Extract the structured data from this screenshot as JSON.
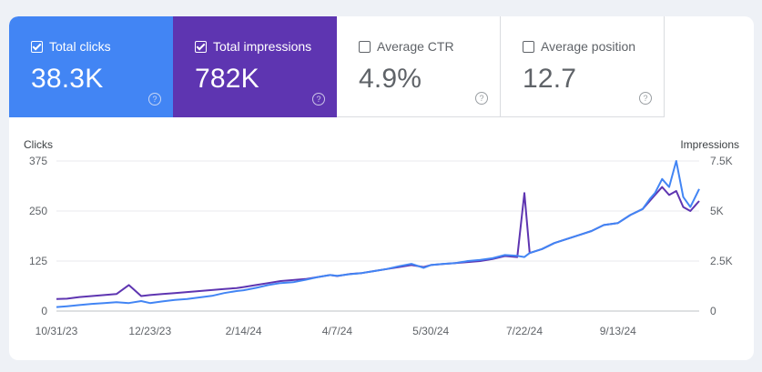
{
  "metrics": [
    {
      "label": "Total clicks",
      "value": "38.3K",
      "checked": true,
      "color": "#4285f4"
    },
    {
      "label": "Total impressions",
      "value": "782K",
      "checked": true,
      "color": "#5e35b1"
    },
    {
      "label": "Average CTR",
      "value": "4.9%",
      "checked": false,
      "color": "#ffffff"
    },
    {
      "label": "Average position",
      "value": "12.7",
      "checked": false,
      "color": "#ffffff"
    }
  ],
  "chart_data": {
    "type": "line",
    "left_axis": {
      "title": "Clicks",
      "ticks": [
        0,
        125,
        250,
        375
      ],
      "tick_labels": [
        "0",
        "125",
        "250",
        "375"
      ],
      "range": [
        0,
        375
      ]
    },
    "right_axis": {
      "title": "Impressions",
      "ticks": [
        0,
        2500,
        5000,
        7500
      ],
      "tick_labels": [
        "0",
        "2.5K",
        "5K",
        "7.5K"
      ],
      "range": [
        0,
        7500
      ]
    },
    "x_axis": {
      "ticks": [
        "10/31/23",
        "12/23/23",
        "2/14/24",
        "4/7/24",
        "5/30/24",
        "7/22/24",
        "9/13/24"
      ],
      "range": [
        "2023-10-31",
        "2024-10-29"
      ]
    },
    "grid": true,
    "series": [
      {
        "name": "Total clicks",
        "axis": "left",
        "color": "#4285f4",
        "x": [
          "2023-10-31",
          "2023-11-06",
          "2023-11-13",
          "2023-11-20",
          "2023-11-27",
          "2023-12-04",
          "2023-12-11",
          "2023-12-18",
          "2023-12-23",
          "2023-12-30",
          "2024-01-06",
          "2024-01-13",
          "2024-01-20",
          "2024-01-27",
          "2024-02-03",
          "2024-02-10",
          "2024-02-14",
          "2024-02-21",
          "2024-02-28",
          "2024-03-06",
          "2024-03-13",
          "2024-03-20",
          "2024-03-27",
          "2024-04-03",
          "2024-04-07",
          "2024-04-14",
          "2024-04-21",
          "2024-04-28",
          "2024-05-05",
          "2024-05-12",
          "2024-05-19",
          "2024-05-26",
          "2024-05-30",
          "2024-06-06",
          "2024-06-13",
          "2024-06-20",
          "2024-06-27",
          "2024-07-04",
          "2024-07-11",
          "2024-07-18",
          "2024-07-22",
          "2024-07-25",
          "2024-08-01",
          "2024-08-08",
          "2024-08-15",
          "2024-08-22",
          "2024-08-29",
          "2024-09-05",
          "2024-09-13",
          "2024-09-20",
          "2024-09-27",
          "2024-10-01",
          "2024-10-04",
          "2024-10-08",
          "2024-10-12",
          "2024-10-16",
          "2024-10-20",
          "2024-10-24",
          "2024-10-29"
        ],
        "values": [
          10,
          12,
          15,
          18,
          20,
          22,
          20,
          25,
          20,
          24,
          28,
          30,
          34,
          38,
          45,
          50,
          52,
          58,
          65,
          70,
          72,
          78,
          85,
          90,
          88,
          92,
          95,
          100,
          105,
          112,
          118,
          108,
          115,
          118,
          120,
          125,
          128,
          132,
          140,
          138,
          135,
          145,
          155,
          170,
          180,
          190,
          200,
          215,
          220,
          240,
          255,
          280,
          295,
          330,
          310,
          375,
          285,
          260,
          305
        ]
      },
      {
        "name": "Total impressions",
        "axis": "right",
        "color": "#5e35b1",
        "x": [
          "2023-10-31",
          "2023-11-06",
          "2023-11-13",
          "2023-11-20",
          "2023-11-27",
          "2023-12-04",
          "2023-12-11",
          "2023-12-18",
          "2023-12-23",
          "2023-12-30",
          "2024-01-06",
          "2024-01-13",
          "2024-01-20",
          "2024-01-27",
          "2024-02-03",
          "2024-02-10",
          "2024-02-14",
          "2024-02-21",
          "2024-02-28",
          "2024-03-06",
          "2024-03-13",
          "2024-03-20",
          "2024-03-27",
          "2024-04-03",
          "2024-04-07",
          "2024-04-14",
          "2024-04-21",
          "2024-04-28",
          "2024-05-05",
          "2024-05-12",
          "2024-05-19",
          "2024-05-26",
          "2024-05-30",
          "2024-06-06",
          "2024-06-13",
          "2024-06-20",
          "2024-06-27",
          "2024-07-04",
          "2024-07-11",
          "2024-07-18",
          "2024-07-22",
          "2024-07-25",
          "2024-08-01",
          "2024-08-08",
          "2024-08-15",
          "2024-08-22",
          "2024-08-29",
          "2024-09-05",
          "2024-09-13",
          "2024-09-20",
          "2024-09-27",
          "2024-10-01",
          "2024-10-04",
          "2024-10-08",
          "2024-10-12",
          "2024-10-16",
          "2024-10-20",
          "2024-10-24",
          "2024-10-29"
        ],
        "values": [
          600,
          620,
          700,
          750,
          800,
          850,
          1300,
          750,
          800,
          850,
          900,
          950,
          1000,
          1050,
          1100,
          1150,
          1200,
          1300,
          1400,
          1500,
          1550,
          1600,
          1700,
          1800,
          1750,
          1850,
          1900,
          2000,
          2100,
          2200,
          2300,
          2200,
          2300,
          2350,
          2400,
          2450,
          2500,
          2600,
          2750,
          2700,
          5900,
          2900,
          3100,
          3400,
          3600,
          3800,
          4000,
          4300,
          4400,
          4800,
          5100,
          5500,
          5800,
          6200,
          5800,
          6000,
          5200,
          5000,
          5500
        ]
      }
    ]
  }
}
